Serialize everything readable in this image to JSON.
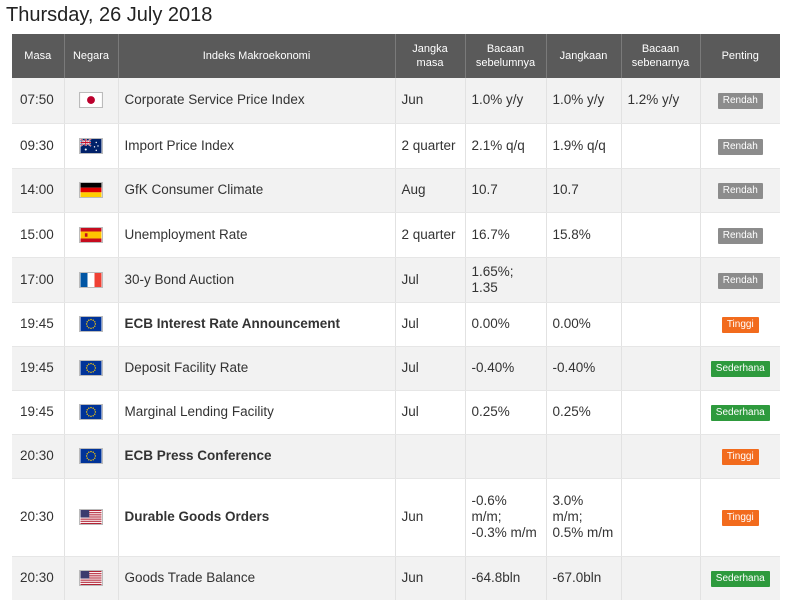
{
  "date_title": "Thursday, 26 July 2018",
  "headers": {
    "time": "Masa",
    "country": "Negara",
    "indicator": "Indeks Makroekonomi",
    "period": "Jangka masa",
    "previous": "Bacaan sebelumnya",
    "forecast": "Jangkaan",
    "actual": "Bacaan sebenarnya",
    "importance": "Penting"
  },
  "colors": {
    "header_bg": "#5a5a5a",
    "row_odd": "#f2f2f2",
    "low": "#8c8c8c",
    "high": "#f26b1d",
    "medium": "#2e9a3d",
    "actual_text": "#18a018"
  },
  "rows": [
    {
      "time": "07:50",
      "flag": "japan-flag-icon",
      "indicator": "Corporate Service Price Index",
      "period": "Jun",
      "previous": "1.0% y/y",
      "forecast": "1.0% y/y",
      "actual": "1.2% y/y",
      "importance": "Rendah"
    },
    {
      "time": "09:30",
      "flag": "australia-flag-icon",
      "indicator": "Import Price Index",
      "period": "2 quarter",
      "previous": "2.1% q/q",
      "forecast": "1.9% q/q",
      "actual": "",
      "importance": "Rendah"
    },
    {
      "time": "14:00",
      "flag": "germany-flag-icon",
      "indicator": "GfK Consumer Climate",
      "period": "Aug",
      "previous": "10.7",
      "forecast": "10.7",
      "actual": "",
      "importance": "Rendah"
    },
    {
      "time": "15:00",
      "flag": "spain-flag-icon",
      "indicator": "Unemployment Rate",
      "period": "2 quarter",
      "previous": "16.7%",
      "forecast": "15.8%",
      "actual": "",
      "importance": "Rendah"
    },
    {
      "time": "17:00",
      "flag": "france-flag-icon",
      "indicator": "30-y Bond Auction",
      "period": "Jul",
      "previous": "1.65%; 1.35",
      "forecast": "",
      "actual": "",
      "importance": "Rendah"
    },
    {
      "time": "19:45",
      "flag": "eu-flag-icon",
      "indicator": "ECB Interest Rate Announcement",
      "period": "Jul",
      "previous": "0.00%",
      "forecast": "0.00%",
      "actual": "",
      "importance": "Tinggi"
    },
    {
      "time": "19:45",
      "flag": "eu-flag-icon",
      "indicator": "Deposit Facility Rate",
      "period": "Jul",
      "previous": "-0.40%",
      "forecast": "-0.40%",
      "actual": "",
      "importance": "Sederhana"
    },
    {
      "time": "19:45",
      "flag": "eu-flag-icon",
      "indicator": "Marginal Lending Facility",
      "period": "Jul",
      "previous": "0.25%",
      "forecast": "0.25%",
      "actual": "",
      "importance": "Sederhana"
    },
    {
      "time": "20:30",
      "flag": "eu-flag-icon",
      "indicator": "ECB Press Conference",
      "period": "",
      "previous": "",
      "forecast": "",
      "actual": "",
      "importance": "Tinggi"
    },
    {
      "time": "20:30",
      "flag": "usa-flag-icon",
      "indicator": "Durable Goods Orders",
      "period": "Jun",
      "previous": "-0.6% m/m; -0.3% m/m",
      "forecast": "3.0% m/m; 0.5% m/m",
      "actual": "",
      "importance": "Tinggi"
    },
    {
      "time": "20:30",
      "flag": "usa-flag-icon",
      "indicator": "Goods Trade Balance",
      "period": "Jun",
      "previous": "-64.8bln",
      "forecast": "-67.0bln",
      "actual": "",
      "importance": "Sederhana"
    }
  ]
}
